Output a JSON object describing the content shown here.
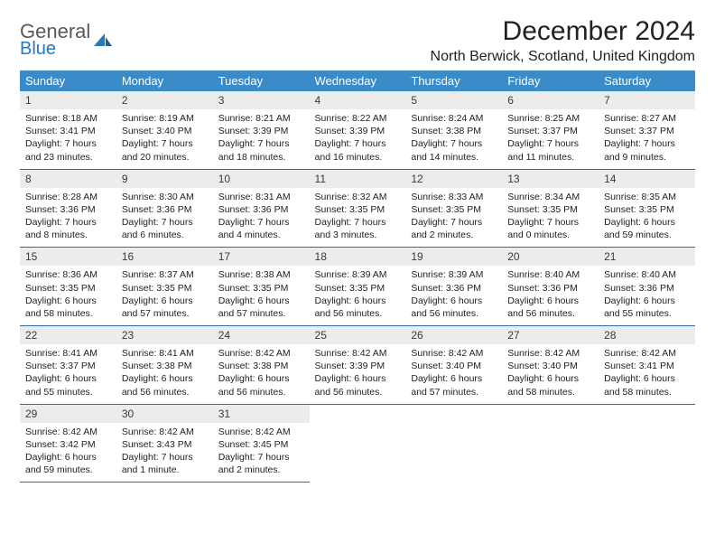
{
  "brand": {
    "part1": "General",
    "part2": "Blue"
  },
  "title": "December 2024",
  "location": "North Berwick, Scotland, United Kingdom",
  "styling": {
    "header_bg": "#3b8bc9",
    "header_fg": "#ffffff",
    "daynum_bg": "#ececec",
    "row_border": "#2f6fa3",
    "body_font_size": 10.5,
    "title_font_size": 30,
    "location_font_size": 16,
    "day_header_font_size": 13,
    "logo_gray": "#595959",
    "logo_blue": "#2478bd"
  },
  "weekdays": [
    "Sunday",
    "Monday",
    "Tuesday",
    "Wednesday",
    "Thursday",
    "Friday",
    "Saturday"
  ],
  "days": [
    {
      "n": "1",
      "sr": "Sunrise: 8:18 AM",
      "ss": "Sunset: 3:41 PM",
      "dl": "Daylight: 7 hours and 23 minutes."
    },
    {
      "n": "2",
      "sr": "Sunrise: 8:19 AM",
      "ss": "Sunset: 3:40 PM",
      "dl": "Daylight: 7 hours and 20 minutes."
    },
    {
      "n": "3",
      "sr": "Sunrise: 8:21 AM",
      "ss": "Sunset: 3:39 PM",
      "dl": "Daylight: 7 hours and 18 minutes."
    },
    {
      "n": "4",
      "sr": "Sunrise: 8:22 AM",
      "ss": "Sunset: 3:39 PM",
      "dl": "Daylight: 7 hours and 16 minutes."
    },
    {
      "n": "5",
      "sr": "Sunrise: 8:24 AM",
      "ss": "Sunset: 3:38 PM",
      "dl": "Daylight: 7 hours and 14 minutes."
    },
    {
      "n": "6",
      "sr": "Sunrise: 8:25 AM",
      "ss": "Sunset: 3:37 PM",
      "dl": "Daylight: 7 hours and 11 minutes."
    },
    {
      "n": "7",
      "sr": "Sunrise: 8:27 AM",
      "ss": "Sunset: 3:37 PM",
      "dl": "Daylight: 7 hours and 9 minutes."
    },
    {
      "n": "8",
      "sr": "Sunrise: 8:28 AM",
      "ss": "Sunset: 3:36 PM",
      "dl": "Daylight: 7 hours and 8 minutes."
    },
    {
      "n": "9",
      "sr": "Sunrise: 8:30 AM",
      "ss": "Sunset: 3:36 PM",
      "dl": "Daylight: 7 hours and 6 minutes."
    },
    {
      "n": "10",
      "sr": "Sunrise: 8:31 AM",
      "ss": "Sunset: 3:36 PM",
      "dl": "Daylight: 7 hours and 4 minutes."
    },
    {
      "n": "11",
      "sr": "Sunrise: 8:32 AM",
      "ss": "Sunset: 3:35 PM",
      "dl": "Daylight: 7 hours and 3 minutes."
    },
    {
      "n": "12",
      "sr": "Sunrise: 8:33 AM",
      "ss": "Sunset: 3:35 PM",
      "dl": "Daylight: 7 hours and 2 minutes."
    },
    {
      "n": "13",
      "sr": "Sunrise: 8:34 AM",
      "ss": "Sunset: 3:35 PM",
      "dl": "Daylight: 7 hours and 0 minutes."
    },
    {
      "n": "14",
      "sr": "Sunrise: 8:35 AM",
      "ss": "Sunset: 3:35 PM",
      "dl": "Daylight: 6 hours and 59 minutes."
    },
    {
      "n": "15",
      "sr": "Sunrise: 8:36 AM",
      "ss": "Sunset: 3:35 PM",
      "dl": "Daylight: 6 hours and 58 minutes."
    },
    {
      "n": "16",
      "sr": "Sunrise: 8:37 AM",
      "ss": "Sunset: 3:35 PM",
      "dl": "Daylight: 6 hours and 57 minutes."
    },
    {
      "n": "17",
      "sr": "Sunrise: 8:38 AM",
      "ss": "Sunset: 3:35 PM",
      "dl": "Daylight: 6 hours and 57 minutes."
    },
    {
      "n": "18",
      "sr": "Sunrise: 8:39 AM",
      "ss": "Sunset: 3:35 PM",
      "dl": "Daylight: 6 hours and 56 minutes."
    },
    {
      "n": "19",
      "sr": "Sunrise: 8:39 AM",
      "ss": "Sunset: 3:36 PM",
      "dl": "Daylight: 6 hours and 56 minutes."
    },
    {
      "n": "20",
      "sr": "Sunrise: 8:40 AM",
      "ss": "Sunset: 3:36 PM",
      "dl": "Daylight: 6 hours and 56 minutes."
    },
    {
      "n": "21",
      "sr": "Sunrise: 8:40 AM",
      "ss": "Sunset: 3:36 PM",
      "dl": "Daylight: 6 hours and 55 minutes."
    },
    {
      "n": "22",
      "sr": "Sunrise: 8:41 AM",
      "ss": "Sunset: 3:37 PM",
      "dl": "Daylight: 6 hours and 55 minutes."
    },
    {
      "n": "23",
      "sr": "Sunrise: 8:41 AM",
      "ss": "Sunset: 3:38 PM",
      "dl": "Daylight: 6 hours and 56 minutes."
    },
    {
      "n": "24",
      "sr": "Sunrise: 8:42 AM",
      "ss": "Sunset: 3:38 PM",
      "dl": "Daylight: 6 hours and 56 minutes."
    },
    {
      "n": "25",
      "sr": "Sunrise: 8:42 AM",
      "ss": "Sunset: 3:39 PM",
      "dl": "Daylight: 6 hours and 56 minutes."
    },
    {
      "n": "26",
      "sr": "Sunrise: 8:42 AM",
      "ss": "Sunset: 3:40 PM",
      "dl": "Daylight: 6 hours and 57 minutes."
    },
    {
      "n": "27",
      "sr": "Sunrise: 8:42 AM",
      "ss": "Sunset: 3:40 PM",
      "dl": "Daylight: 6 hours and 58 minutes."
    },
    {
      "n": "28",
      "sr": "Sunrise: 8:42 AM",
      "ss": "Sunset: 3:41 PM",
      "dl": "Daylight: 6 hours and 58 minutes."
    },
    {
      "n": "29",
      "sr": "Sunrise: 8:42 AM",
      "ss": "Sunset: 3:42 PM",
      "dl": "Daylight: 6 hours and 59 minutes."
    },
    {
      "n": "30",
      "sr": "Sunrise: 8:42 AM",
      "ss": "Sunset: 3:43 PM",
      "dl": "Daylight: 7 hours and 1 minute."
    },
    {
      "n": "31",
      "sr": "Sunrise: 8:42 AM",
      "ss": "Sunset: 3:45 PM",
      "dl": "Daylight: 7 hours and 2 minutes."
    }
  ]
}
